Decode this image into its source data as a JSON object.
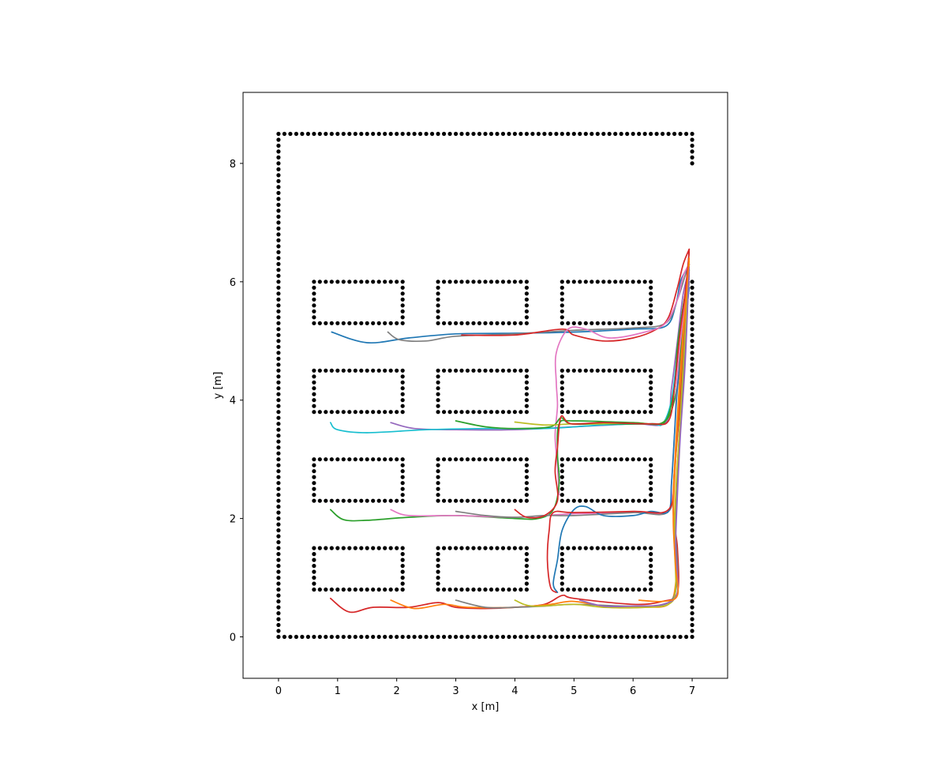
{
  "chart_data": {
    "type": "scatter",
    "xlabel": "x [m]",
    "ylabel": "y [m]",
    "xlim": [
      -0.6,
      7.6
    ],
    "ylim": [
      -0.7,
      9.2
    ],
    "x_ticks": [
      0,
      1,
      2,
      3,
      4,
      5,
      6,
      7
    ],
    "y_ticks": [
      0,
      2,
      4,
      6,
      8
    ],
    "grid": false,
    "legend": "none",
    "point_color": "#000000",
    "boundary": {
      "spacing": 0.1,
      "outline": [
        [
          7,
          8.0
        ],
        [
          7,
          8.5
        ],
        [
          0,
          8.5
        ],
        [
          0,
          0
        ],
        [
          7,
          0
        ],
        [
          7,
          6.0
        ]
      ]
    },
    "shelves": {
      "spacing": 0.1,
      "x_ranges": [
        [
          0.6,
          2.1
        ],
        [
          2.7,
          4.2
        ],
        [
          4.8,
          6.3
        ]
      ],
      "y_ranges": [
        [
          0.8,
          1.5
        ],
        [
          2.3,
          3.0
        ],
        [
          3.8,
          4.5
        ],
        [
          5.3,
          6.0
        ]
      ]
    },
    "series": [
      {
        "color": "#1f77b4",
        "points": [
          [
            0.9,
            5.15
          ],
          [
            1.5,
            4.97
          ],
          [
            2.2,
            5.05
          ],
          [
            3.0,
            5.12
          ],
          [
            4.0,
            5.13
          ],
          [
            5.0,
            5.15
          ],
          [
            6.0,
            5.2
          ],
          [
            6.55,
            5.25
          ],
          [
            6.72,
            5.6
          ],
          [
            6.8,
            6.0
          ],
          [
            6.9,
            6.2
          ]
        ]
      },
      {
        "color": "#7f7f7f",
        "points": [
          [
            1.85,
            5.15
          ],
          [
            2.05,
            5.02
          ],
          [
            2.5,
            5.0
          ],
          [
            3.0,
            5.08
          ],
          [
            4.0,
            5.12
          ],
          [
            5.0,
            5.18
          ],
          [
            6.0,
            5.22
          ],
          [
            6.55,
            5.3
          ],
          [
            6.75,
            5.7
          ],
          [
            6.88,
            6.1
          ],
          [
            6.95,
            6.3
          ]
        ]
      },
      {
        "color": "#d62728",
        "points": [
          [
            3.1,
            5.1
          ],
          [
            4.0,
            5.1
          ],
          [
            4.8,
            5.2
          ],
          [
            5.0,
            5.1
          ],
          [
            5.5,
            5.0
          ],
          [
            6.0,
            5.05
          ],
          [
            6.4,
            5.2
          ],
          [
            6.6,
            5.4
          ],
          [
            6.75,
            5.9
          ],
          [
            6.85,
            6.3
          ],
          [
            6.95,
            6.55
          ]
        ]
      },
      {
        "color": "#e377c2",
        "points": [
          [
            4.75,
            2.4
          ],
          [
            4.72,
            2.9
          ],
          [
            4.68,
            3.4
          ],
          [
            4.72,
            3.9
          ],
          [
            4.7,
            4.3
          ],
          [
            4.7,
            4.8
          ],
          [
            4.9,
            5.2
          ],
          [
            5.2,
            5.2
          ],
          [
            5.6,
            5.05
          ],
          [
            6.2,
            5.15
          ],
          [
            6.55,
            5.3
          ],
          [
            6.75,
            5.7
          ],
          [
            6.85,
            6.1
          ],
          [
            6.95,
            6.3
          ]
        ]
      },
      {
        "color": "#9467bd",
        "points": [
          [
            1.9,
            3.62
          ],
          [
            2.3,
            3.52
          ],
          [
            3.0,
            3.5
          ],
          [
            4.0,
            3.5
          ],
          [
            5.0,
            3.55
          ],
          [
            6.0,
            3.6
          ],
          [
            6.55,
            3.62
          ],
          [
            6.65,
            4.2
          ],
          [
            6.75,
            5.0
          ],
          [
            6.85,
            5.8
          ],
          [
            6.95,
            6.2
          ]
        ]
      },
      {
        "color": "#17becf",
        "points": [
          [
            0.88,
            3.62
          ],
          [
            1.0,
            3.5
          ],
          [
            1.5,
            3.45
          ],
          [
            2.5,
            3.5
          ],
          [
            3.5,
            3.52
          ],
          [
            4.5,
            3.52
          ],
          [
            5.5,
            3.58
          ],
          [
            6.3,
            3.6
          ],
          [
            6.5,
            3.6
          ],
          [
            6.65,
            4.0
          ],
          [
            6.75,
            4.8
          ],
          [
            6.85,
            5.6
          ],
          [
            6.95,
            6.1
          ]
        ]
      },
      {
        "color": "#2ca02c",
        "points": [
          [
            3.0,
            3.65
          ],
          [
            3.5,
            3.55
          ],
          [
            4.0,
            3.52
          ],
          [
            4.6,
            3.55
          ],
          [
            4.78,
            3.7
          ],
          [
            4.95,
            3.6
          ],
          [
            5.5,
            3.6
          ],
          [
            6.3,
            3.6
          ],
          [
            6.55,
            3.65
          ],
          [
            6.7,
            4.2
          ],
          [
            6.75,
            4.9
          ],
          [
            6.85,
            5.6
          ],
          [
            6.95,
            6.15
          ]
        ]
      },
      {
        "color": "#bcbd22",
        "points": [
          [
            4.0,
            3.63
          ],
          [
            4.5,
            3.58
          ],
          [
            5.0,
            3.6
          ],
          [
            5.5,
            3.6
          ],
          [
            6.0,
            3.62
          ],
          [
            6.5,
            3.62
          ],
          [
            6.7,
            4.0
          ],
          [
            6.8,
            4.8
          ],
          [
            6.88,
            5.6
          ],
          [
            6.95,
            6.1
          ]
        ]
      },
      {
        "color": "#2ca02c",
        "points": [
          [
            0.88,
            2.15
          ],
          [
            1.1,
            1.98
          ],
          [
            1.5,
            1.97
          ],
          [
            2.2,
            2.02
          ],
          [
            3.0,
            2.05
          ],
          [
            4.0,
            2.0
          ],
          [
            4.4,
            2.0
          ],
          [
            4.65,
            2.15
          ],
          [
            4.75,
            2.6
          ],
          [
            4.72,
            3.1
          ],
          [
            4.75,
            3.6
          ],
          [
            5.0,
            3.65
          ],
          [
            6.0,
            3.62
          ],
          [
            6.5,
            3.62
          ],
          [
            6.7,
            4.0
          ],
          [
            6.8,
            4.8
          ],
          [
            6.88,
            5.6
          ],
          [
            6.95,
            6.2
          ]
        ]
      },
      {
        "color": "#e377c2",
        "points": [
          [
            1.9,
            2.15
          ],
          [
            2.2,
            2.05
          ],
          [
            3.0,
            2.05
          ],
          [
            4.0,
            2.02
          ],
          [
            4.5,
            2.05
          ],
          [
            5.0,
            2.08
          ],
          [
            6.0,
            2.1
          ],
          [
            6.6,
            2.12
          ],
          [
            6.65,
            2.6
          ],
          [
            6.7,
            3.4
          ],
          [
            6.75,
            4.4
          ],
          [
            6.85,
            5.4
          ],
          [
            6.95,
            6.05
          ]
        ]
      },
      {
        "color": "#7f7f7f",
        "points": [
          [
            3.0,
            2.12
          ],
          [
            3.5,
            2.05
          ],
          [
            4.0,
            2.02
          ],
          [
            4.5,
            2.05
          ],
          [
            5.0,
            2.05
          ],
          [
            6.0,
            2.1
          ],
          [
            6.6,
            2.12
          ],
          [
            6.7,
            2.8
          ],
          [
            6.78,
            3.8
          ],
          [
            6.85,
            4.8
          ],
          [
            6.95,
            6.0
          ]
        ]
      },
      {
        "color": "#d62728",
        "points": [
          [
            4.0,
            2.15
          ],
          [
            4.2,
            2.02
          ],
          [
            4.5,
            2.05
          ],
          [
            4.72,
            2.3
          ],
          [
            4.68,
            2.8
          ],
          [
            4.72,
            3.2
          ],
          [
            4.78,
            3.72
          ],
          [
            4.95,
            3.6
          ],
          [
            5.5,
            3.62
          ],
          [
            6.3,
            3.6
          ],
          [
            6.6,
            3.65
          ],
          [
            6.7,
            4.2
          ],
          [
            6.78,
            5.0
          ],
          [
            6.88,
            5.8
          ],
          [
            6.95,
            6.5
          ]
        ]
      },
      {
        "color": "#1f77b4",
        "points": [
          [
            4.72,
            0.75
          ],
          [
            4.65,
            0.9
          ],
          [
            4.72,
            1.3
          ],
          [
            4.8,
            1.8
          ],
          [
            5.0,
            2.15
          ],
          [
            5.2,
            2.2
          ],
          [
            5.5,
            2.05
          ],
          [
            6.0,
            2.05
          ],
          [
            6.3,
            2.12
          ],
          [
            6.6,
            2.12
          ],
          [
            6.65,
            2.6
          ],
          [
            6.7,
            3.4
          ],
          [
            6.75,
            4.2
          ],
          [
            6.85,
            5.0
          ],
          [
            6.95,
            5.9
          ]
        ]
      },
      {
        "color": "#d62728",
        "points": [
          [
            4.7,
            0.75
          ],
          [
            4.6,
            0.85
          ],
          [
            4.55,
            1.3
          ],
          [
            4.58,
            1.8
          ],
          [
            4.65,
            2.1
          ],
          [
            5.0,
            2.1
          ],
          [
            6.0,
            2.12
          ],
          [
            6.6,
            2.15
          ],
          [
            6.7,
            2.8
          ],
          [
            6.75,
            3.6
          ],
          [
            6.8,
            4.5
          ],
          [
            6.88,
            5.5
          ],
          [
            6.95,
            6.55
          ]
        ]
      },
      {
        "color": "#d62728",
        "points": [
          [
            0.88,
            0.65
          ],
          [
            1.2,
            0.42
          ],
          [
            1.6,
            0.5
          ],
          [
            2.2,
            0.5
          ],
          [
            2.7,
            0.58
          ],
          [
            3.0,
            0.5
          ],
          [
            3.5,
            0.48
          ],
          [
            4.0,
            0.5
          ],
          [
            4.5,
            0.55
          ],
          [
            4.8,
            0.7
          ],
          [
            5.0,
            0.65
          ],
          [
            6.0,
            0.55
          ],
          [
            6.5,
            0.6
          ],
          [
            6.75,
            0.75
          ],
          [
            6.75,
            1.5
          ],
          [
            6.68,
            2.1
          ],
          [
            6.72,
            3.0
          ],
          [
            6.8,
            4.0
          ],
          [
            6.88,
            5.2
          ],
          [
            6.95,
            6.3
          ]
        ]
      },
      {
        "color": "#ff7f0e",
        "points": [
          [
            1.9,
            0.62
          ],
          [
            2.3,
            0.48
          ],
          [
            2.8,
            0.55
          ],
          [
            3.2,
            0.5
          ],
          [
            4.0,
            0.5
          ],
          [
            4.6,
            0.55
          ],
          [
            5.0,
            0.6
          ],
          [
            5.6,
            0.5
          ],
          [
            6.2,
            0.5
          ],
          [
            6.6,
            0.55
          ],
          [
            6.72,
            0.9
          ],
          [
            6.72,
            1.6
          ],
          [
            6.68,
            2.3
          ],
          [
            6.72,
            3.2
          ],
          [
            6.78,
            4.2
          ],
          [
            6.85,
            5.2
          ],
          [
            6.95,
            6.35
          ]
        ]
      },
      {
        "color": "#7f7f7f",
        "points": [
          [
            3.0,
            0.62
          ],
          [
            3.5,
            0.5
          ],
          [
            4.0,
            0.5
          ],
          [
            4.5,
            0.52
          ],
          [
            5.0,
            0.55
          ],
          [
            6.0,
            0.52
          ],
          [
            6.6,
            0.58
          ],
          [
            6.75,
            1.0
          ],
          [
            6.72,
            1.8
          ],
          [
            6.75,
            2.6
          ],
          [
            6.8,
            3.6
          ],
          [
            6.88,
            4.8
          ],
          [
            6.95,
            6.2
          ]
        ]
      },
      {
        "color": "#bcbd22",
        "points": [
          [
            4.0,
            0.62
          ],
          [
            4.3,
            0.52
          ],
          [
            5.0,
            0.55
          ],
          [
            5.5,
            0.5
          ],
          [
            6.2,
            0.5
          ],
          [
            6.6,
            0.55
          ],
          [
            6.72,
            0.8
          ],
          [
            6.7,
            1.6
          ],
          [
            6.72,
            2.4
          ],
          [
            6.78,
            3.4
          ],
          [
            6.85,
            4.6
          ],
          [
            6.95,
            6.3
          ]
        ]
      },
      {
        "color": "#9467bd",
        "points": [
          [
            5.1,
            0.62
          ],
          [
            5.5,
            0.52
          ],
          [
            6.0,
            0.52
          ],
          [
            6.5,
            0.55
          ],
          [
            6.75,
            0.75
          ],
          [
            6.72,
            1.5
          ],
          [
            6.75,
            2.4
          ],
          [
            6.8,
            3.4
          ],
          [
            6.88,
            4.6
          ],
          [
            6.95,
            6.25
          ]
        ]
      },
      {
        "color": "#ff7f0e",
        "points": [
          [
            6.1,
            0.62
          ],
          [
            6.5,
            0.6
          ],
          [
            6.75,
            0.7
          ],
          [
            6.72,
            1.2
          ],
          [
            6.68,
            2.0
          ],
          [
            6.72,
            3.0
          ],
          [
            6.78,
            4.0
          ],
          [
            6.85,
            5.1
          ],
          [
            6.95,
            6.4
          ]
        ]
      }
    ]
  }
}
